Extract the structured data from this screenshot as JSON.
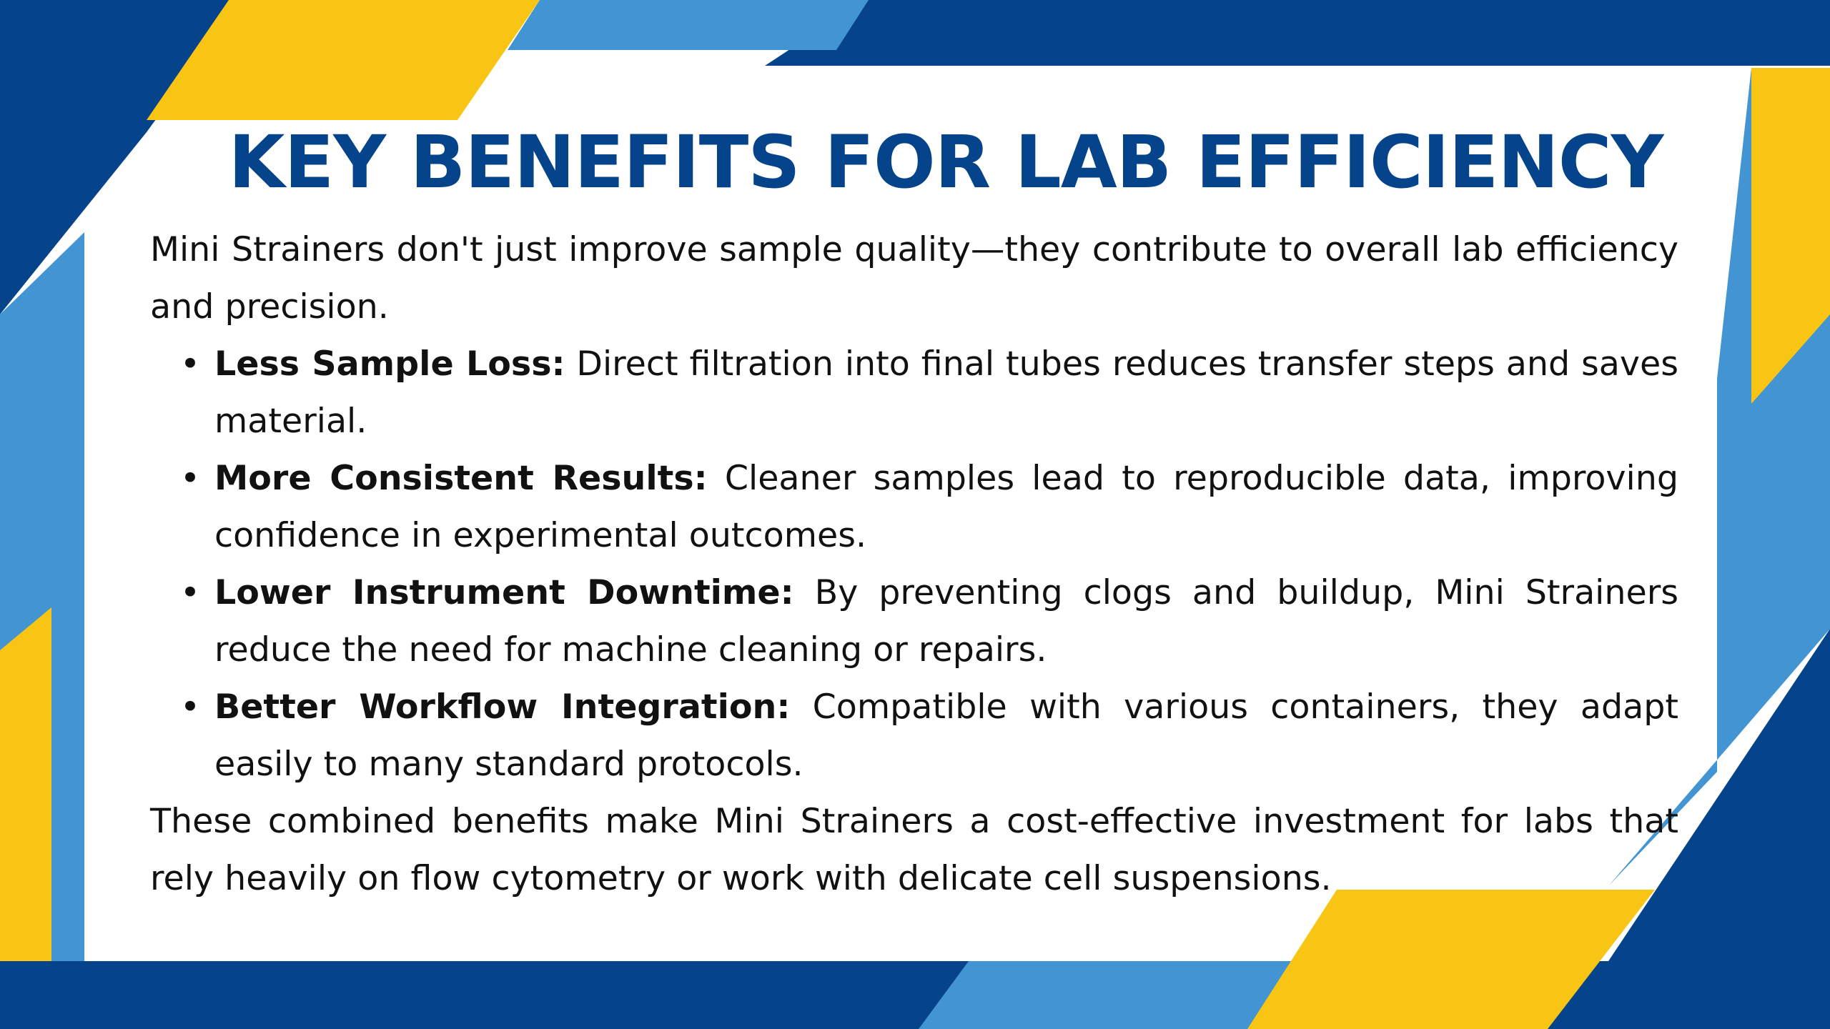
{
  "slide": {
    "title": "KEY BENEFITS FOR LAB EFFICIENCY",
    "intro": "Mini Strainers don't just improve sample quality—they contribute to overall lab efficiency and precision.",
    "bullet_glyph": "•",
    "benefits": [
      {
        "term": "Less Sample Loss:",
        "text": "Direct filtration into final tubes reduces transfer steps and saves material."
      },
      {
        "term": "More Consistent Results:",
        "text": "Cleaner samples lead to reproducible data, improving confidence in experimental outcomes."
      },
      {
        "term": "Lower Instrument Downtime:",
        "text": "By preventing clogs and buildup, Mini Strainers reduce the need for machine cleaning or repairs."
      },
      {
        "term": "Better Workflow Integration:",
        "text": "Compatible with various containers, they adapt easily to many standard protocols."
      }
    ],
    "conclusion": "These combined benefits make Mini Strainers a cost-effective investment for labs that rely heavily on flow cytometry or work with delicate cell suspensions."
  },
  "colors": {
    "navy": "#05438a",
    "sky_blue": "#4294d2",
    "yellow": "#f9c515",
    "text": "#111111",
    "background": "#ffffff"
  }
}
